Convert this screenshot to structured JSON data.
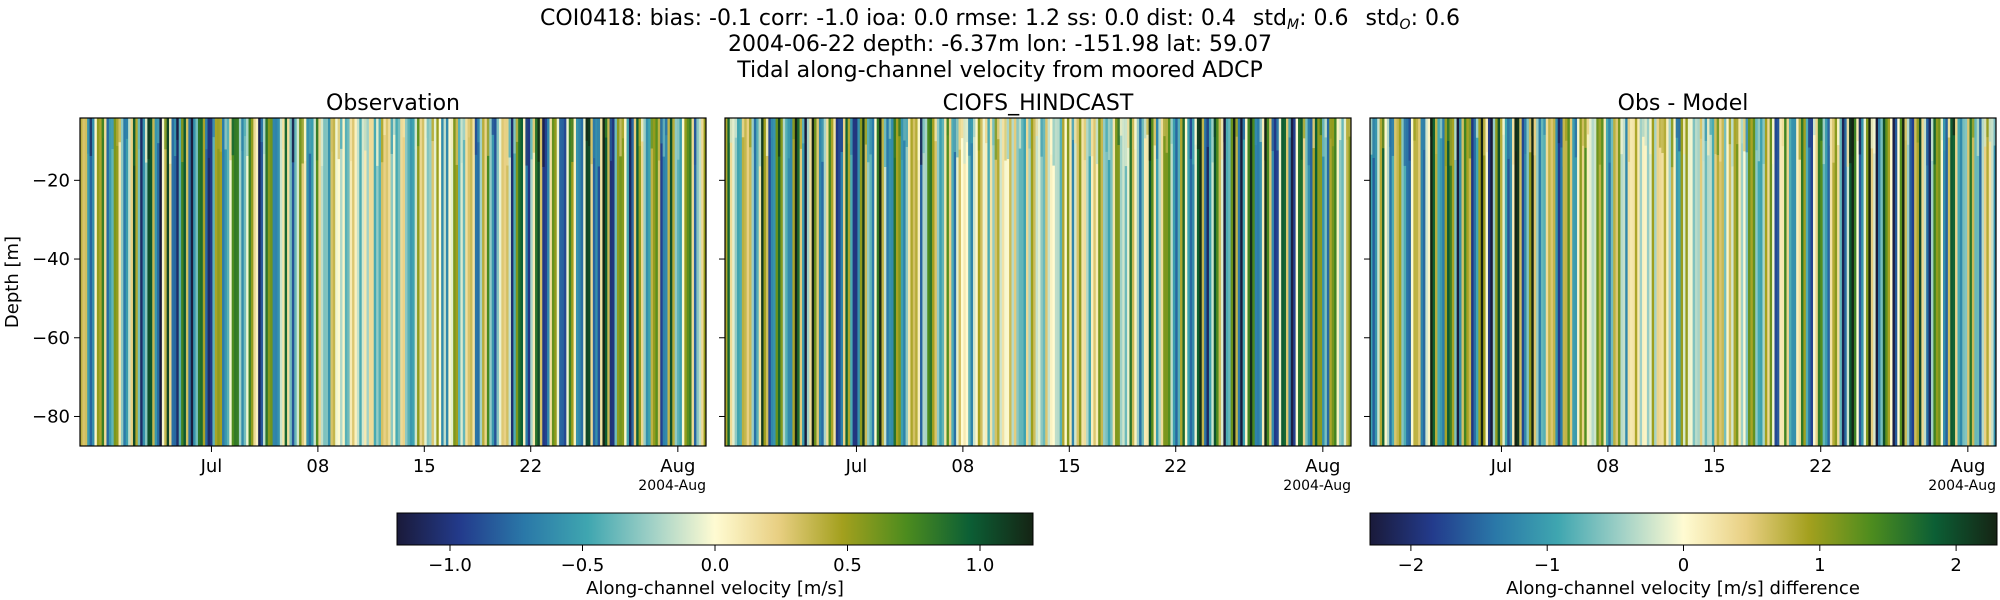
{
  "figure": {
    "title_line1": "COI0418: bias: -0.1  corr: -1.0  ioa: 0.0  rmse: 1.2  ss: 0.0  dist: 0.4",
    "title_line1_std_m": "std",
    "title_line1_std_m_sub": "M",
    "title_line1_std_m_val": ": 0.6",
    "title_line1_std_o": "std",
    "title_line1_std_o_sub": "O",
    "title_line1_std_o_val": ": 0.6",
    "title_line2": "2004-06-22 depth: -6.37m lon: -151.98 lat: 59.07",
    "title_line3": "Tidal along-channel velocity from moored ADCP"
  },
  "chart_data": [
    {
      "type": "heatmap",
      "title": "Observation",
      "ylabel": "Depth [m]",
      "xticks": [
        "Jul",
        "08",
        "15",
        "22",
        "Aug"
      ],
      "xtick_sub": "2004-Aug",
      "yticks": [
        "−20",
        "−40",
        "−60",
        "−80"
      ],
      "ylim": [
        -89,
        -4
      ],
      "x_range": [
        "2004-06-22",
        "2004-08-05"
      ],
      "colorbar": "velocity",
      "pattern_seed": 7
    },
    {
      "type": "heatmap",
      "title": "CIOFS_HINDCAST",
      "ylabel": "",
      "xticks": [
        "Jul",
        "08",
        "15",
        "22",
        "Aug"
      ],
      "xtick_sub": "2004-Aug",
      "yticks": [],
      "ylim": [
        -89,
        -4
      ],
      "x_range": [
        "2004-06-22",
        "2004-08-05"
      ],
      "colorbar": "velocity",
      "pattern_seed": 13
    },
    {
      "type": "heatmap",
      "title": "Obs - Model",
      "ylabel": "",
      "xticks": [
        "Jul",
        "08",
        "15",
        "22",
        "Aug"
      ],
      "xtick_sub": "2004-Aug",
      "yticks": [],
      "ylim": [
        -89,
        -4
      ],
      "x_range": [
        "2004-06-22",
        "2004-08-05"
      ],
      "colorbar": "difference",
      "pattern_seed": 29
    }
  ],
  "colorbars": {
    "velocity": {
      "label": "Along-channel velocity [m/s]",
      "range": [
        -1.2,
        1.2
      ],
      "ticks": [
        -1.0,
        -0.5,
        0.0,
        0.5,
        1.0
      ],
      "tick_labels": [
        "−1.0",
        "−0.5",
        "0.0",
        "0.5",
        "1.0"
      ]
    },
    "difference": {
      "label": "Along-channel velocity [m/s] difference",
      "range": [
        -2.3,
        2.3
      ],
      "ticks": [
        -2,
        -1,
        0,
        1,
        2
      ],
      "tick_labels": [
        "−2",
        "−1",
        "0",
        "1",
        "2"
      ]
    }
  },
  "colormap": [
    "#1a1a3a",
    "#233b8c",
    "#2a78a8",
    "#3fa6b0",
    "#9fd0c6",
    "#fffbd2",
    "#e8cf82",
    "#a3a01e",
    "#4d8c1e",
    "#0c5f35",
    "#152414"
  ]
}
